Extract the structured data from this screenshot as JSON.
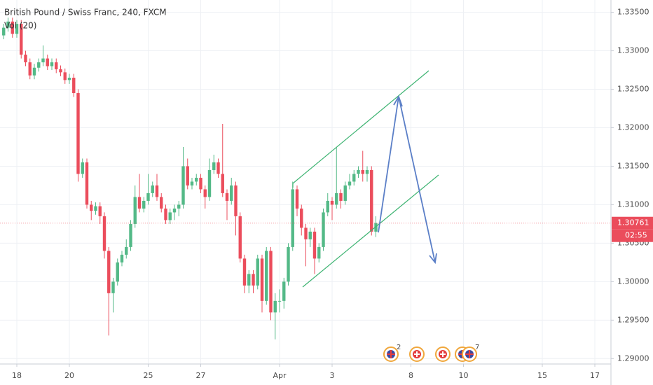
{
  "chart_data": {
    "type": "candlestick",
    "title": "British Pound / Swiss Franc, 240, FXCM",
    "subtitle": "Vol (20)",
    "x": [
      -3,
      -2,
      -1,
      0,
      1,
      2,
      3,
      4,
      5,
      6,
      7,
      8,
      9,
      10,
      11,
      12,
      13,
      14,
      15,
      16,
      17,
      18,
      19,
      20,
      21,
      22,
      23,
      24,
      25,
      26,
      27,
      28,
      29,
      30,
      31,
      32,
      33,
      34,
      35,
      36,
      37,
      38,
      39,
      40,
      41,
      42,
      43,
      44,
      45,
      46,
      47,
      48,
      49,
      50,
      51,
      52,
      53,
      54,
      55,
      56,
      57,
      58,
      59,
      60,
      61,
      62,
      63,
      64,
      65,
      66,
      67,
      68,
      69,
      70,
      71,
      72,
      73,
      74,
      75,
      76,
      77,
      78,
      79,
      80,
      81,
      82
    ],
    "open": [
      1.332,
      1.333,
      1.3338,
      1.3322,
      1.3335,
      1.3295,
      1.3285,
      1.3268,
      1.3278,
      1.3285,
      1.329,
      1.328,
      1.3285,
      1.3276,
      1.3272,
      1.3262,
      1.3265,
      1.3245,
      1.314,
      1.3155,
      1.31,
      1.3092,
      1.3098,
      1.3085,
      1.304,
      1.2985,
      1.3,
      1.3025,
      1.3035,
      1.3045,
      1.3075,
      1.311,
      1.3095,
      1.3105,
      1.3115,
      1.3125,
      1.311,
      1.3095,
      1.308,
      1.309,
      1.3095,
      1.31,
      1.315,
      1.3125,
      1.313,
      1.3135,
      1.312,
      1.311,
      1.3145,
      1.3155,
      1.314,
      1.3115,
      1.3105,
      1.3125,
      1.3085,
      1.303,
      1.2995,
      1.301,
      1.2995,
      1.303,
      1.2975,
      1.304,
      1.296,
      1.2975,
      1.2975,
      1.3,
      1.3045,
      1.312,
      1.3095,
      1.307,
      1.3055,
      1.3065,
      1.303,
      1.3045,
      1.309,
      1.3105,
      1.31,
      1.3115,
      1.3105,
      1.3125,
      1.313,
      1.314,
      1.3145,
      1.314,
      1.3145,
      1.3065
    ],
    "high": [
      1.3335,
      1.3343,
      1.3343,
      1.334,
      1.334,
      1.33,
      1.329,
      1.3283,
      1.329,
      1.3307,
      1.3295,
      1.329,
      1.329,
      1.3281,
      1.3277,
      1.327,
      1.327,
      1.325,
      1.316,
      1.316,
      1.3105,
      1.3103,
      1.3103,
      1.309,
      1.3045,
      1.3005,
      1.303,
      1.304,
      1.3055,
      1.308,
      1.3125,
      1.314,
      1.311,
      1.314,
      1.313,
      1.314,
      1.3115,
      1.31,
      1.3095,
      1.31,
      1.3105,
      1.3175,
      1.316,
      1.3135,
      1.314,
      1.314,
      1.3125,
      1.316,
      1.3165,
      1.316,
      1.3205,
      1.312,
      1.3135,
      1.313,
      1.309,
      1.3035,
      1.3015,
      1.3015,
      1.3035,
      1.3035,
      1.3045,
      1.3045,
      1.2985,
      1.299,
      1.3005,
      1.305,
      1.313,
      1.3125,
      1.31,
      1.3075,
      1.307,
      1.307,
      1.305,
      1.3095,
      1.3115,
      1.311,
      1.3175,
      1.312,
      1.313,
      1.314,
      1.3145,
      1.315,
      1.317,
      1.315,
      1.315,
      1.3085
    ],
    "low": [
      1.3315,
      1.3325,
      1.3317,
      1.3317,
      1.329,
      1.328,
      1.3263,
      1.3263,
      1.3273,
      1.328,
      1.3275,
      1.3275,
      1.3271,
      1.3267,
      1.3257,
      1.3257,
      1.324,
      1.313,
      1.3135,
      1.3095,
      1.308,
      1.3087,
      1.3075,
      1.303,
      1.293,
      1.296,
      1.2995,
      1.302,
      1.303,
      1.304,
      1.307,
      1.309,
      1.309,
      1.31,
      1.311,
      1.3105,
      1.309,
      1.3075,
      1.3075,
      1.308,
      1.3085,
      1.3095,
      1.312,
      1.312,
      1.3125,
      1.3115,
      1.3095,
      1.3105,
      1.314,
      1.3135,
      1.311,
      1.308,
      1.31,
      1.306,
      1.3025,
      1.2985,
      1.2985,
      1.2985,
      1.299,
      1.296,
      1.297,
      1.295,
      1.2925,
      1.296,
      1.2965,
      1.2995,
      1.304,
      1.3085,
      1.306,
      1.302,
      1.3045,
      1.301,
      1.3025,
      1.304,
      1.3085,
      1.308,
      1.3095,
      1.3095,
      1.31,
      1.312,
      1.3125,
      1.3135,
      1.313,
      1.313,
      1.306,
      1.3058
    ],
    "close": [
      1.333,
      1.3338,
      1.3322,
      1.3335,
      1.3295,
      1.3285,
      1.3268,
      1.3278,
      1.3285,
      1.329,
      1.328,
      1.3285,
      1.3276,
      1.3272,
      1.3262,
      1.3265,
      1.3245,
      1.314,
      1.3155,
      1.31,
      1.3092,
      1.3098,
      1.3085,
      1.304,
      1.2985,
      1.3,
      1.3025,
      1.3035,
      1.3045,
      1.3075,
      1.311,
      1.3095,
      1.3105,
      1.3115,
      1.3125,
      1.311,
      1.3095,
      1.308,
      1.309,
      1.3095,
      1.31,
      1.315,
      1.3125,
      1.313,
      1.3135,
      1.312,
      1.311,
      1.3145,
      1.3155,
      1.314,
      1.3115,
      1.3105,
      1.3125,
      1.3085,
      1.303,
      1.2995,
      1.301,
      1.2995,
      1.303,
      1.2975,
      1.304,
      1.296,
      1.2975,
      1.2975,
      1.3,
      1.3045,
      1.312,
      1.3095,
      1.307,
      1.3055,
      1.3065,
      1.303,
      1.3045,
      1.309,
      1.3105,
      1.31,
      1.3115,
      1.3105,
      1.3125,
      1.313,
      1.314,
      1.3145,
      1.314,
      1.3145,
      1.3065,
      1.30761
    ],
    "up_color": "#53b987",
    "down_color": "#eb4d5c",
    "xlim": [
      -3.84,
      135.68
    ],
    "xticks": [
      {
        "value": 0,
        "label": "18"
      },
      {
        "value": 12,
        "label": "20"
      },
      {
        "value": 30,
        "label": "25"
      },
      {
        "value": 42,
        "label": "27"
      },
      {
        "value": 60,
        "label": "Apr"
      },
      {
        "value": 72,
        "label": "3"
      },
      {
        "value": 90,
        "label": "8"
      },
      {
        "value": 102,
        "label": "10"
      },
      {
        "value": 120,
        "label": "15"
      },
      {
        "value": 132,
        "label": "17"
      }
    ],
    "ylim": [
      1.2893,
      1.3366
    ],
    "yticks": [
      {
        "value": 1.335,
        "label": "1.33500"
      },
      {
        "value": 1.33,
        "label": "1.33000"
      },
      {
        "value": 1.325,
        "label": "1.32500"
      },
      {
        "value": 1.32,
        "label": "1.32000"
      },
      {
        "value": 1.315,
        "label": "1.31500"
      },
      {
        "value": 1.31,
        "label": "1.31000"
      },
      {
        "value": 1.305,
        "label": "1.30500"
      },
      {
        "value": 1.3,
        "label": "1.30000"
      },
      {
        "value": 1.295,
        "label": "1.29500"
      },
      {
        "value": 1.29,
        "label": "1.29000"
      }
    ],
    "grid": true,
    "last_price": {
      "value": 1.30761,
      "label": "1.30761"
    },
    "countdown": "02:55",
    "event_badges": [
      "2",
      "7"
    ]
  }
}
